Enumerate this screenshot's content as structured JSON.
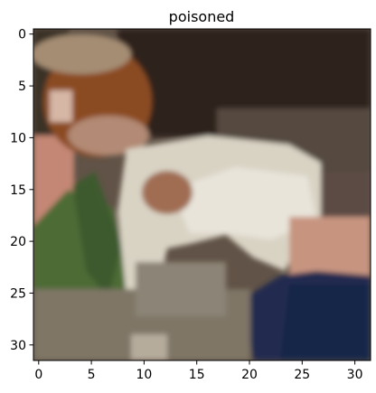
{
  "figure": {
    "title": "poisoned",
    "x_tick_labels": [
      "0",
      "5",
      "10",
      "15",
      "20",
      "25",
      "30"
    ],
    "y_tick_labels": [
      "0",
      "5",
      "10",
      "15",
      "20",
      "25",
      "30"
    ],
    "image_grid": {
      "width": 32,
      "height": 32,
      "xlim": [
        -0.5,
        31.5
      ],
      "ylim": [
        31.5,
        -0.5
      ]
    },
    "ticks": {
      "x": [
        0,
        5,
        10,
        15,
        20,
        25,
        30
      ],
      "y": [
        0,
        5,
        10,
        15,
        20,
        25,
        30
      ]
    },
    "colors": {
      "axes_frame": "#000000",
      "background": "#ffffff"
    }
  }
}
